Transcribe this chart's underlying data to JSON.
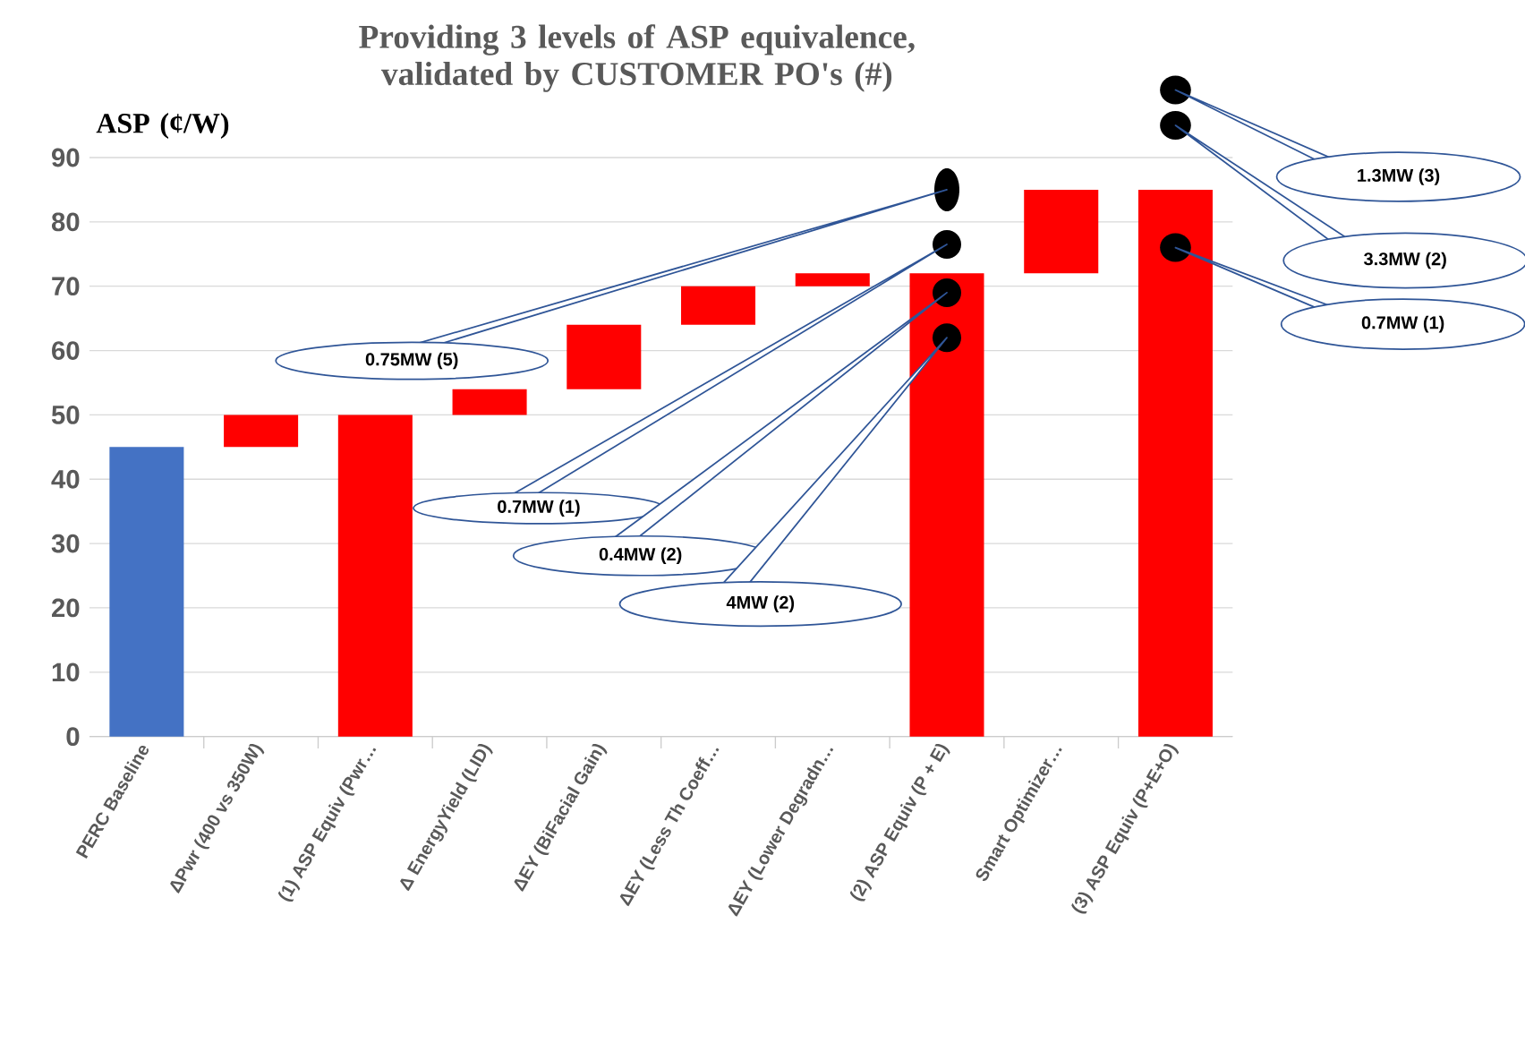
{
  "chart_data": {
    "type": "bar",
    "title": "Providing 3 levels of ASP equivalence, validated by CUSTOMER PO's (#)",
    "ylabel": "ASP (¢/W)",
    "categories": [
      "PERC Baseline",
      "ΔPwr (400 vs 350W)",
      "(1) ASP Equiv (Pwr…",
      "Δ EnergyYield (LID)",
      "ΔEY (BiFacial Gain)",
      "ΔEY (Less Th Coeff…",
      "ΔEY (Lower Degradn…",
      "(2) ASP Equiv  (P + E)",
      "Smart Optimizer…",
      "(3) ASP Equiv (P+E+O)"
    ],
    "values": [
      45,
      5,
      50,
      4,
      10,
      6,
      2,
      72,
      13,
      85
    ],
    "base": [
      0,
      45,
      0,
      50,
      54,
      64,
      70,
      0,
      72,
      0
    ],
    "colors": [
      "#4472c4",
      "#ff0000",
      "#ff0000",
      "#ff0000",
      "#ff0000",
      "#ff0000",
      "#ff0000",
      "#ff0000",
      "#ff0000",
      "#ff0000"
    ],
    "ylim": [
      0,
      90
    ],
    "yticks": [
      0,
      10,
      20,
      30,
      40,
      50,
      60,
      70,
      80,
      90
    ],
    "grid": "y",
    "annotations": [
      "0.75MW (5)",
      "0.7MW (1)",
      "0.4MW (2)",
      "4MW (2)",
      "1.3MW (3)",
      "3.3MW (2)",
      "0.7MW (1)"
    ]
  }
}
